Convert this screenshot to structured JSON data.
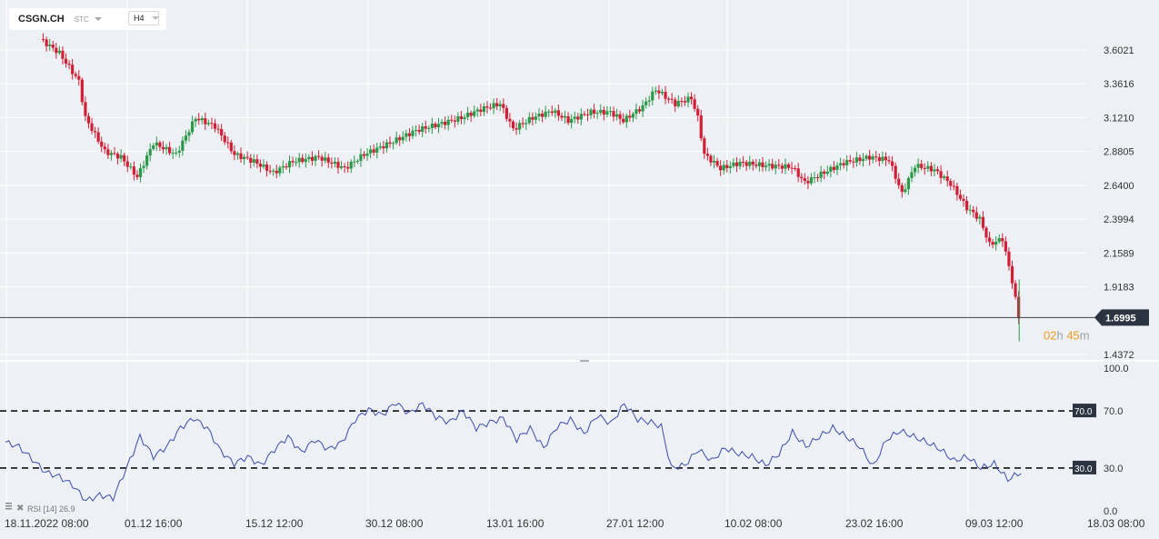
{
  "toolbar": {
    "symbol": "CSGN.CH",
    "source": "STC",
    "timeframe": "H4"
  },
  "price_axis": {
    "labels": [
      "3.6021",
      "3.3616",
      "3.1210",
      "2.8805",
      "2.6400",
      "2.3994",
      "2.1589",
      "1.9183",
      "1.4372"
    ],
    "last_price": "1.6995",
    "timer": {
      "hours": "02",
      "h": "h",
      "minutes": "45",
      "m": "m"
    }
  },
  "rsi_axis": {
    "labels": [
      "100.0",
      "70.0",
      "30.0",
      "0.0"
    ],
    "upper_badge": "70.0",
    "lower_badge": "30.0",
    "legend": {
      "name": "RSI",
      "period": "[14]",
      "value": "26.9"
    }
  },
  "time_axis": [
    "18.11.2022  08:00",
    "01.12  16:00",
    "15.12  12:00",
    "30.12  08:00",
    "13.01  16:00",
    "27.01  12:00",
    "10.02  08:00",
    "23.02  16:00",
    "09.03  12:00",
    "18.03  08:00"
  ],
  "colors": {
    "up": "#2a9a48",
    "down": "#d21f35",
    "rsi_line": "#3c4cad",
    "timer": "#f39a1d",
    "badge": "#2b3440"
  },
  "chart_data": [
    {
      "type": "candlestick",
      "price_anchors": [
        [
          0,
          3.68
        ],
        [
          6,
          3.58
        ],
        [
          12,
          3.38
        ],
        [
          14,
          3.12
        ],
        [
          20,
          2.88
        ],
        [
          25,
          2.84
        ],
        [
          30,
          2.7
        ],
        [
          35,
          2.94
        ],
        [
          42,
          2.86
        ],
        [
          48,
          3.12
        ],
        [
          54,
          3.06
        ],
        [
          60,
          2.86
        ],
        [
          66,
          2.81
        ],
        [
          72,
          2.73
        ],
        [
          78,
          2.81
        ],
        [
          86,
          2.84
        ],
        [
          94,
          2.76
        ],
        [
          100,
          2.86
        ],
        [
          108,
          2.94
        ],
        [
          116,
          3.03
        ],
        [
          124,
          3.08
        ],
        [
          130,
          3.12
        ],
        [
          136,
          3.18
        ],
        [
          142,
          3.22
        ],
        [
          146,
          3.04
        ],
        [
          152,
          3.12
        ],
        [
          158,
          3.17
        ],
        [
          163,
          3.1
        ],
        [
          170,
          3.16
        ],
        [
          176,
          3.16
        ],
        [
          180,
          3.1
        ],
        [
          186,
          3.2
        ],
        [
          190,
          3.32
        ],
        [
          196,
          3.22
        ],
        [
          201,
          3.26
        ],
        [
          203,
          3.12
        ],
        [
          205,
          2.86
        ],
        [
          210,
          2.76
        ],
        [
          216,
          2.8
        ],
        [
          224,
          2.78
        ],
        [
          232,
          2.77
        ],
        [
          236,
          2.66
        ],
        [
          241,
          2.72
        ],
        [
          248,
          2.8
        ],
        [
          256,
          2.84
        ],
        [
          262,
          2.82
        ],
        [
          266,
          2.58
        ],
        [
          270,
          2.78
        ],
        [
          276,
          2.75
        ],
        [
          281,
          2.65
        ],
        [
          286,
          2.48
        ],
        [
          290,
          2.4
        ],
        [
          293,
          2.22
        ],
        [
          297,
          2.26
        ],
        [
          300,
          1.96
        ],
        [
          302,
          1.7
        ]
      ],
      "rsi_anchors": [
        [
          0,
          48
        ],
        [
          4,
          45
        ],
        [
          8,
          36
        ],
        [
          12,
          27
        ],
        [
          16,
          24
        ],
        [
          20,
          18
        ],
        [
          24,
          7
        ],
        [
          28,
          11
        ],
        [
          32,
          9
        ],
        [
          36,
          30
        ],
        [
          40,
          52
        ],
        [
          44,
          38
        ],
        [
          48,
          45
        ],
        [
          52,
          58
        ],
        [
          56,
          65
        ],
        [
          60,
          58
        ],
        [
          64,
          42
        ],
        [
          68,
          33
        ],
        [
          72,
          38
        ],
        [
          76,
          32
        ],
        [
          80,
          43
        ],
        [
          84,
          52
        ],
        [
          88,
          41
        ],
        [
          92,
          50
        ],
        [
          96,
          43
        ],
        [
          100,
          48
        ],
        [
          104,
          64
        ],
        [
          108,
          71
        ],
        [
          112,
          67
        ],
        [
          116,
          76
        ],
        [
          120,
          68
        ],
        [
          124,
          75
        ],
        [
          128,
          66
        ],
        [
          132,
          62
        ],
        [
          136,
          70
        ],
        [
          140,
          58
        ],
        [
          144,
          62
        ],
        [
          148,
          65
        ],
        [
          152,
          50
        ],
        [
          156,
          58
        ],
        [
          160,
          44
        ],
        [
          164,
          59
        ],
        [
          168,
          64
        ],
        [
          172,
          54
        ],
        [
          176,
          67
        ],
        [
          180,
          61
        ],
        [
          184,
          75
        ],
        [
          188,
          64
        ],
        [
          192,
          62
        ],
        [
          195,
          59
        ],
        [
          198,
          30
        ],
        [
          202,
          32
        ],
        [
          206,
          43
        ],
        [
          210,
          35
        ],
        [
          214,
          44
        ],
        [
          218,
          40
        ],
        [
          222,
          38
        ],
        [
          226,
          32
        ],
        [
          230,
          40
        ],
        [
          234,
          55
        ],
        [
          238,
          45
        ],
        [
          242,
          52
        ],
        [
          246,
          58
        ],
        [
          250,
          52
        ],
        [
          254,
          45
        ],
        [
          258,
          31
        ],
        [
          262,
          50
        ],
        [
          266,
          56
        ],
        [
          270,
          52
        ],
        [
          274,
          48
        ],
        [
          278,
          43
        ],
        [
          282,
          35
        ],
        [
          286,
          38
        ],
        [
          290,
          30
        ],
        [
          294,
          33
        ],
        [
          298,
          22
        ],
        [
          302,
          27
        ]
      ],
      "last_price": 1.6995,
      "ylim": [
        1.4,
        3.76
      ]
    }
  ]
}
